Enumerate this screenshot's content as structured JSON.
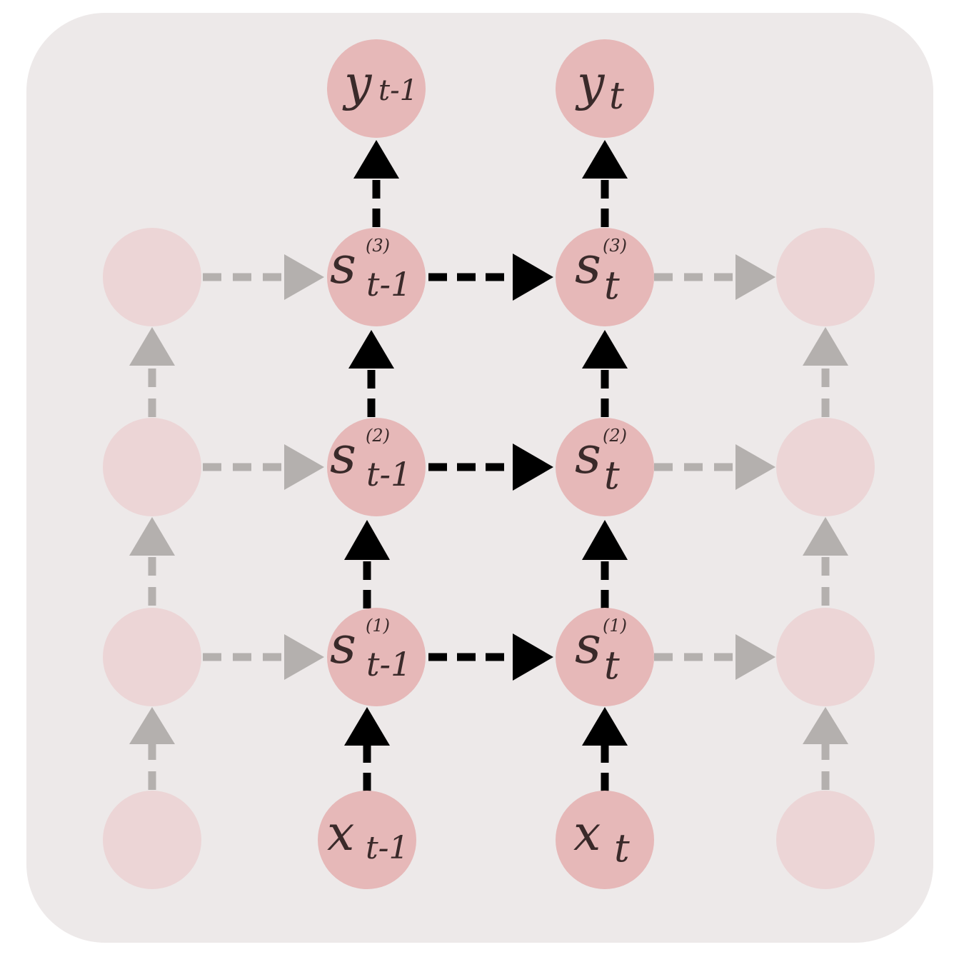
{
  "colors": {
    "panel": "#ede9e9",
    "node_active": "#e6b8b8",
    "node_faded": "#ecd5d6",
    "edge_active": "#000000",
    "edge_faded": "#b4b0ae",
    "text": "#3a2a2a"
  },
  "nodes": {
    "y_prev": {
      "base": "y",
      "sub": "t-1",
      "sup": ""
    },
    "y_curr": {
      "base": "y",
      "sub": "t",
      "sup": ""
    },
    "s3_prev": {
      "base": "s",
      "sub": "t-1",
      "sup": "(3)"
    },
    "s3_curr": {
      "base": "s",
      "sub": "t",
      "sup": "(3)"
    },
    "s2_prev": {
      "base": "s",
      "sub": "t-1",
      "sup": "(2)"
    },
    "s2_curr": {
      "base": "s",
      "sub": "t",
      "sup": "(2)"
    },
    "s1_prev": {
      "base": "s",
      "sub": "t-1",
      "sup": "(1)"
    },
    "s1_curr": {
      "base": "s",
      "sub": "t",
      "sup": "(1)"
    },
    "x_prev": {
      "base": "x",
      "sub": "t-1",
      "sup": ""
    },
    "x_curr": {
      "base": "x",
      "sub": "t",
      "sup": ""
    }
  }
}
